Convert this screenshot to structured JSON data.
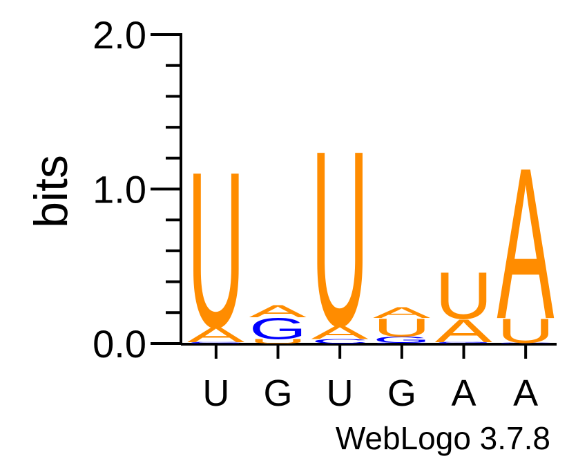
{
  "chart_data": {
    "type": "sequence-logo",
    "ylabel": "bits",
    "ylim": [
      0,
      2.0
    ],
    "yticks": [
      "0.0",
      "1.0",
      "2.0"
    ],
    "xticks": [
      "U",
      "G",
      "U",
      "G",
      "A",
      "A"
    ],
    "credit": "WebLogo 3.7.8",
    "colors": {
      "A": "#ff8c00",
      "U": "#ff8c00",
      "G": "#0000ff",
      "C": "#0000ff"
    },
    "positions": [
      {
        "label": "U",
        "stack": [
          {
            "base": "G",
            "bits": 0.005
          },
          {
            "base": "C",
            "bits": 0.005
          },
          {
            "base": "A",
            "bits": 0.1
          },
          {
            "base": "U",
            "bits": 1.03
          }
        ]
      },
      {
        "label": "G",
        "stack": [
          {
            "base": "U",
            "bits": 0.03
          },
          {
            "base": "G",
            "bits": 0.14
          },
          {
            "base": "A",
            "bits": 0.08
          }
        ]
      },
      {
        "label": "U",
        "stack": [
          {
            "base": "C",
            "bits": 0.03
          },
          {
            "base": "A",
            "bits": 0.09
          },
          {
            "base": "U",
            "bits": 1.16
          }
        ]
      },
      {
        "label": "G",
        "stack": [
          {
            "base": "C",
            "bits": 0.005
          },
          {
            "base": "G",
            "bits": 0.04
          },
          {
            "base": "U",
            "bits": 0.12
          },
          {
            "base": "A",
            "bits": 0.07
          }
        ]
      },
      {
        "label": "A",
        "stack": [
          {
            "base": "C",
            "bits": 0.005
          },
          {
            "base": "G",
            "bits": 0.005
          },
          {
            "base": "A",
            "bits": 0.15
          },
          {
            "base": "U",
            "bits": 0.31
          }
        ]
      },
      {
        "label": "A",
        "stack": [
          {
            "base": "C",
            "bits": 0.005
          },
          {
            "base": "U",
            "bits": 0.16
          },
          {
            "base": "A",
            "bits": 1.0
          }
        ]
      }
    ]
  }
}
